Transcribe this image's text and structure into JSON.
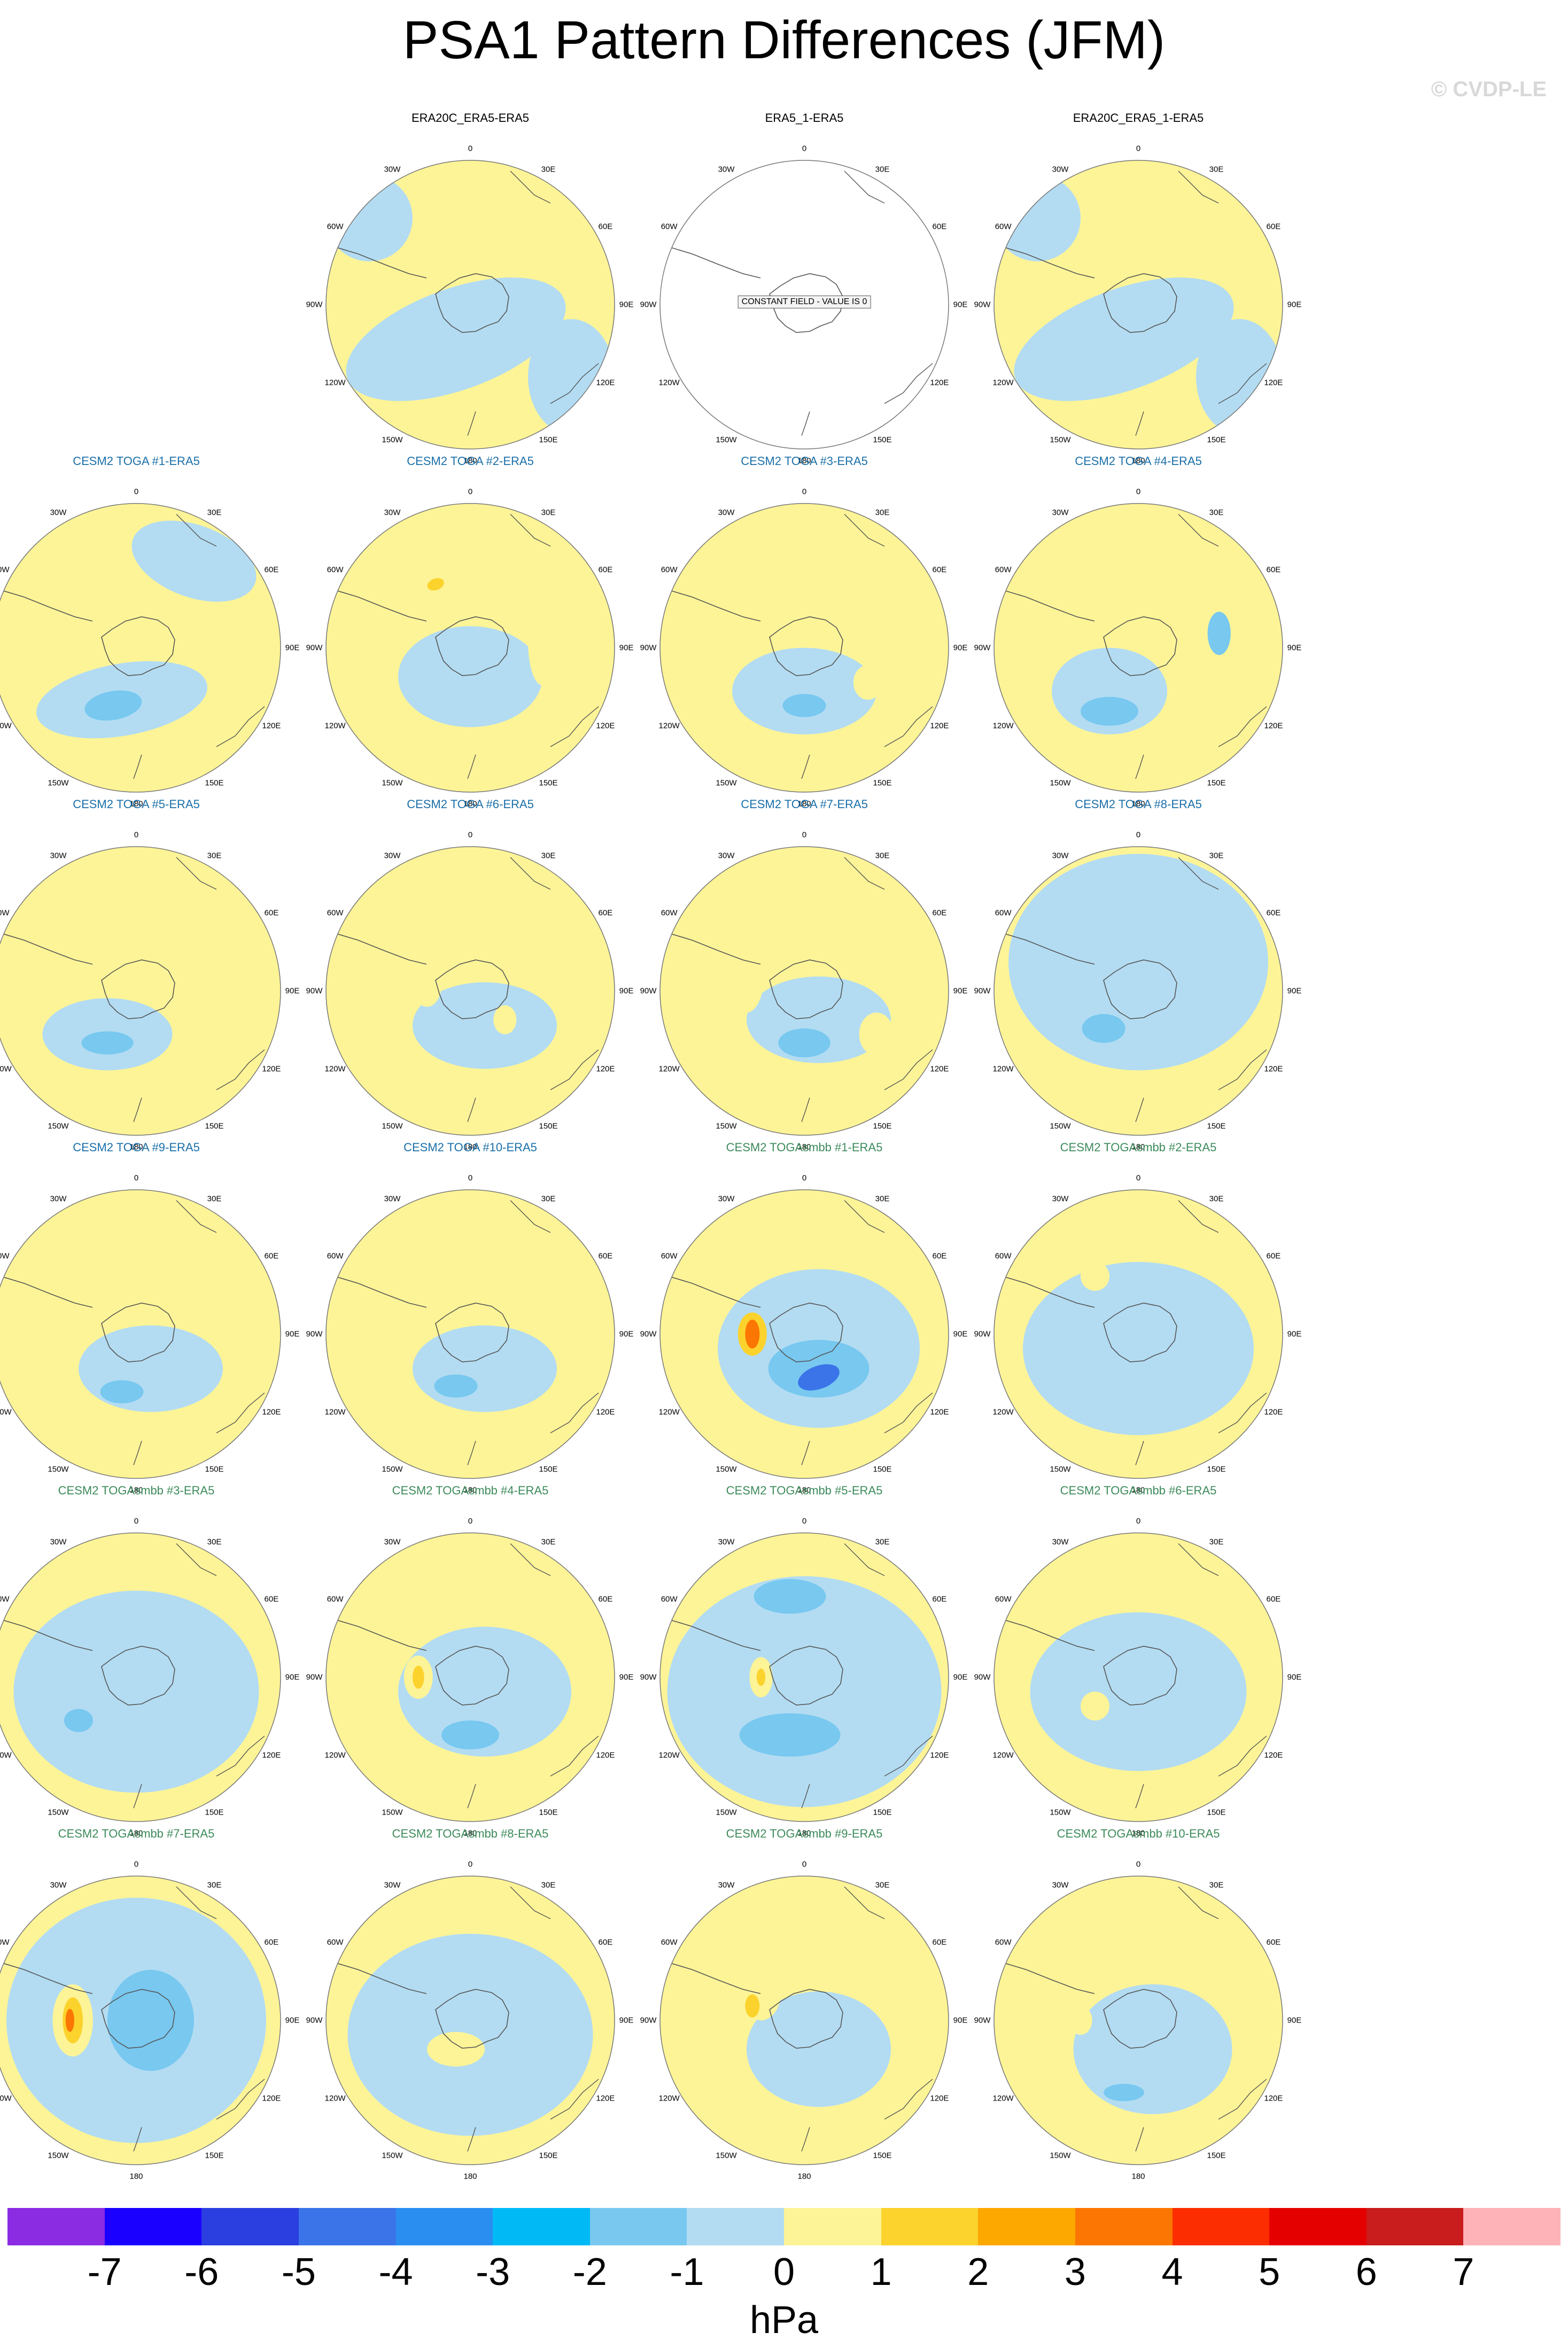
{
  "title": "PSA1 Pattern Differences (JFM)",
  "credit": "© CVDP-LE",
  "units": "hPa",
  "lon_labels": [
    "0",
    "30E",
    "60E",
    "90E",
    "120E",
    "150E",
    "180",
    "150W",
    "120W",
    "90W",
    "60W",
    "30W"
  ],
  "colorbar": {
    "colors": [
      "#8b2be2",
      "#1a00ff",
      "#2b3fe0",
      "#3a74e8",
      "#2a8ef0",
      "#00b9f5",
      "#78c8f0",
      "#b3dcf2",
      "#fdf497",
      "#fcd22d",
      "#fda800",
      "#fb7602",
      "#fc2d00",
      "#e50000",
      "#c91c1c",
      "#fdb3b8"
    ],
    "ticks": [
      "-7",
      "-6",
      "-5",
      "-4",
      "-3",
      "-2",
      "-1",
      "0",
      "1",
      "2",
      "3",
      "4",
      "5",
      "6",
      "7"
    ]
  },
  "panels": [
    {
      "title": "ERA20C_ERA5-ERA5",
      "style": "obs",
      "slot": 1,
      "blobs": [
        [
          "b",
          0.45,
          0.62,
          0.8,
          0.35,
          -20
        ],
        [
          "b",
          0.15,
          0.2,
          0.3,
          0.3,
          0
        ],
        [
          "b",
          0.85,
          0.75,
          0.3,
          0.4,
          0
        ]
      ]
    },
    {
      "title": "ERA5_1-ERA5",
      "style": "obs",
      "slot": 2,
      "constant": "CONSTANT FIELD - VALUE IS 0",
      "blobs": []
    },
    {
      "title": "ERA20C_ERA5_1-ERA5",
      "style": "obs",
      "slot": 3,
      "blobs": [
        [
          "b",
          0.45,
          0.62,
          0.8,
          0.35,
          -20
        ],
        [
          "b",
          0.15,
          0.2,
          0.3,
          0.3,
          0
        ],
        [
          "b",
          0.85,
          0.75,
          0.3,
          0.4,
          0
        ]
      ]
    },
    {
      "title": "CESM2 TOGA #1-ERA5",
      "style": "toga",
      "slot": 4,
      "blobs": [
        [
          "b",
          0.45,
          0.68,
          0.6,
          0.25,
          -10
        ],
        [
          "c",
          0.42,
          0.7,
          0.2,
          0.1,
          -10
        ],
        [
          "y",
          0.28,
          0.52,
          0.1,
          0.08,
          0
        ],
        [
          "b",
          0.7,
          0.2,
          0.45,
          0.25,
          20
        ]
      ]
    },
    {
      "title": "CESM2 TOGA #2-ERA5",
      "style": "toga",
      "slot": 5,
      "blobs": [
        [
          "b",
          0.5,
          0.6,
          0.5,
          0.35,
          0
        ],
        [
          "y",
          0.4,
          0.3,
          0.2,
          0.12,
          -20
        ],
        [
          "o",
          0.38,
          0.28,
          0.06,
          0.04,
          -20
        ],
        [
          "y",
          0.75,
          0.48,
          0.1,
          0.3,
          0
        ]
      ]
    },
    {
      "title": "CESM2 TOGA #3-ERA5",
      "style": "toga",
      "slot": 6,
      "blobs": [
        [
          "b",
          0.5,
          0.65,
          0.5,
          0.3,
          0
        ],
        [
          "c",
          0.5,
          0.7,
          0.15,
          0.08,
          0
        ],
        [
          "y",
          0.72,
          0.62,
          0.1,
          0.12,
          0
        ],
        [
          "y",
          0.35,
          0.45,
          0.08,
          0.12,
          0
        ]
      ]
    },
    {
      "title": "CESM2 TOGA #4-ERA5",
      "style": "toga",
      "slot": 7,
      "blobs": [
        [
          "b",
          0.4,
          0.65,
          0.4,
          0.3,
          0
        ],
        [
          "c",
          0.4,
          0.72,
          0.2,
          0.1,
          0
        ],
        [
          "y",
          0.55,
          0.45,
          0.2,
          0.14,
          0
        ],
        [
          "c",
          0.78,
          0.45,
          0.08,
          0.15,
          0
        ]
      ]
    },
    {
      "title": "CESM2 TOGA #5-ERA5",
      "style": "toga",
      "slot": 8,
      "blobs": [
        [
          "b",
          0.4,
          0.65,
          0.45,
          0.25,
          0
        ],
        [
          "c",
          0.4,
          0.68,
          0.18,
          0.08,
          0
        ],
        [
          "y",
          0.62,
          0.32,
          0.12,
          0.1,
          0
        ]
      ]
    },
    {
      "title": "CESM2 TOGA #6-ERA5",
      "style": "toga",
      "slot": 9,
      "blobs": [
        [
          "b",
          0.55,
          0.62,
          0.5,
          0.3,
          0
        ],
        [
          "y",
          0.35,
          0.48,
          0.1,
          0.15,
          0
        ],
        [
          "y",
          0.62,
          0.6,
          0.08,
          0.1,
          0
        ]
      ]
    },
    {
      "title": "CESM2 TOGA #7-ERA5",
      "style": "toga",
      "slot": 10,
      "blobs": [
        [
          "b",
          0.55,
          0.6,
          0.5,
          0.3,
          0
        ],
        [
          "c",
          0.5,
          0.68,
          0.18,
          0.1,
          0
        ],
        [
          "y",
          0.3,
          0.45,
          0.12,
          0.25,
          0
        ],
        [
          "y",
          0.75,
          0.65,
          0.12,
          0.15,
          0
        ]
      ]
    },
    {
      "title": "CESM2 TOGA #8-ERA5",
      "style": "toga",
      "slot": 11,
      "blobs": [
        [
          "b",
          0.5,
          0.4,
          0.9,
          0.75,
          0
        ],
        [
          "c",
          0.38,
          0.63,
          0.15,
          0.1,
          0
        ]
      ]
    },
    {
      "title": "CESM2 TOGA #9-ERA5",
      "style": "toga",
      "slot": 12,
      "blobs": [
        [
          "b",
          0.55,
          0.62,
          0.5,
          0.3,
          0
        ],
        [
          "c",
          0.45,
          0.7,
          0.15,
          0.08,
          0
        ],
        [
          "y",
          0.3,
          0.45,
          0.1,
          0.15,
          0
        ]
      ]
    },
    {
      "title": "CESM2 TOGA #10-ERA5",
      "style": "toga",
      "slot": 13,
      "blobs": [
        [
          "b",
          0.55,
          0.62,
          0.5,
          0.3,
          0
        ],
        [
          "c",
          0.45,
          0.68,
          0.15,
          0.08,
          0
        ],
        [
          "y",
          0.35,
          0.45,
          0.1,
          0.12,
          0
        ]
      ]
    },
    {
      "title": "CESM2 TOGAsmbb #1-ERA5",
      "style": "smbb",
      "slot": 14,
      "blobs": [
        [
          "b",
          0.55,
          0.55,
          0.7,
          0.55,
          0
        ],
        [
          "c",
          0.55,
          0.62,
          0.35,
          0.2,
          0
        ],
        [
          "d",
          0.55,
          0.65,
          0.15,
          0.08,
          -20
        ],
        [
          "o",
          0.32,
          0.5,
          0.1,
          0.15,
          0
        ],
        [
          "r",
          0.32,
          0.5,
          0.05,
          0.1,
          0
        ]
      ]
    },
    {
      "title": "CESM2 TOGAsmbb #2-ERA5",
      "style": "smbb",
      "slot": 15,
      "blobs": [
        [
          "b",
          0.5,
          0.55,
          0.8,
          0.6,
          0
        ],
        [
          "y",
          0.35,
          0.3,
          0.1,
          0.1,
          0
        ]
      ]
    },
    {
      "title": "CESM2 TOGAsmbb #3-ERA5",
      "style": "smbb",
      "slot": 16,
      "blobs": [
        [
          "b",
          0.5,
          0.55,
          0.85,
          0.7,
          0
        ],
        [
          "c",
          0.3,
          0.65,
          0.1,
          0.08,
          0
        ]
      ]
    },
    {
      "title": "CESM2 TOGAsmbb #4-ERA5",
      "style": "smbb",
      "slot": 17,
      "blobs": [
        [
          "b",
          0.55,
          0.55,
          0.6,
          0.45,
          0
        ],
        [
          "c",
          0.5,
          0.7,
          0.2,
          0.1,
          0
        ],
        [
          "y",
          0.32,
          0.5,
          0.1,
          0.15,
          0
        ],
        [
          "o",
          0.32,
          0.5,
          0.04,
          0.08,
          0
        ]
      ]
    },
    {
      "title": "CESM2 TOGAsmbb #5-ERA5",
      "style": "smbb",
      "slot": 18,
      "blobs": [
        [
          "b",
          0.5,
          0.55,
          0.95,
          0.8,
          0
        ],
        [
          "c",
          0.45,
          0.7,
          0.35,
          0.15,
          0
        ],
        [
          "c",
          0.45,
          0.22,
          0.25,
          0.12,
          0
        ],
        [
          "y",
          0.35,
          0.5,
          0.08,
          0.14,
          0
        ],
        [
          "o",
          0.35,
          0.5,
          0.03,
          0.06,
          0
        ]
      ]
    },
    {
      "title": "CESM2 TOGAsmbb #6-ERA5",
      "style": "smbb",
      "slot": 19,
      "blobs": [
        [
          "b",
          0.5,
          0.55,
          0.75,
          0.55,
          0
        ],
        [
          "y",
          0.35,
          0.6,
          0.1,
          0.1,
          0
        ]
      ]
    },
    {
      "title": "CESM2 TOGAsmbb #7-ERA5",
      "style": "smbb",
      "slot": 20,
      "blobs": [
        [
          "b",
          0.5,
          0.5,
          0.9,
          0.85,
          0
        ],
        [
          "c",
          0.55,
          0.5,
          0.3,
          0.35,
          0
        ],
        [
          "y",
          0.28,
          0.5,
          0.14,
          0.25,
          0
        ],
        [
          "o",
          0.28,
          0.5,
          0.07,
          0.16,
          0
        ],
        [
          "r",
          0.27,
          0.5,
          0.03,
          0.08,
          0
        ]
      ]
    },
    {
      "title": "CESM2 TOGAsmbb #8-ERA5",
      "style": "smbb",
      "slot": 21,
      "blobs": [
        [
          "b",
          0.5,
          0.55,
          0.85,
          0.7,
          0
        ],
        [
          "y",
          0.45,
          0.6,
          0.2,
          0.12,
          0
        ]
      ]
    },
    {
      "title": "CESM2 TOGAsmbb #9-ERA5",
      "style": "smbb",
      "slot": 22,
      "blobs": [
        [
          "b",
          0.55,
          0.6,
          0.5,
          0.4,
          0
        ],
        [
          "y",
          0.35,
          0.4,
          0.14,
          0.2,
          0
        ],
        [
          "o",
          0.32,
          0.45,
          0.05,
          0.08,
          0
        ]
      ]
    },
    {
      "title": "CESM2 TOGAsmbb #10-ERA5",
      "style": "smbb",
      "slot": 23,
      "blobs": [
        [
          "b",
          0.55,
          0.6,
          0.55,
          0.45,
          0
        ],
        [
          "c",
          0.45,
          0.75,
          0.14,
          0.06,
          0
        ],
        [
          "y",
          0.3,
          0.5,
          0.08,
          0.1,
          0
        ]
      ]
    }
  ]
}
